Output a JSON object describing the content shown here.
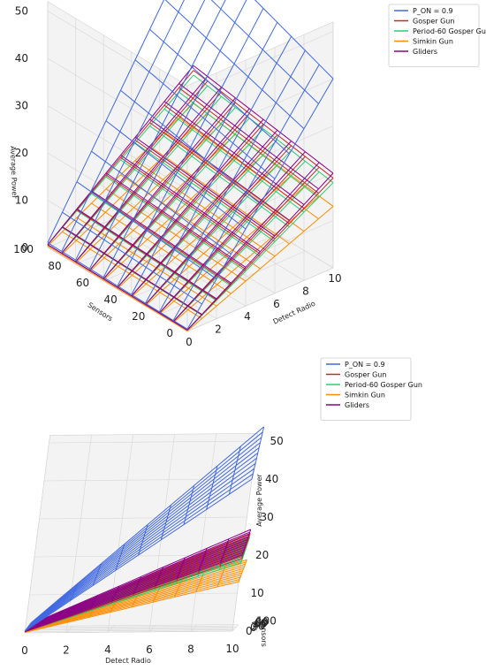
{
  "chart_data": [
    {
      "type": "surface-wireframe-3d",
      "view": "elevated",
      "xlabel": "Detect Radio",
      "ylabel": "Sensors",
      "zlabel": "Average Power",
      "xticks": [
        "0",
        "2",
        "4",
        "6",
        "8",
        "10"
      ],
      "yticks": [
        "0",
        "20",
        "40",
        "60",
        "80",
        "100"
      ],
      "zticks": [
        "0",
        "10",
        "20",
        "30",
        "40",
        "50"
      ],
      "xlim": [
        0,
        10
      ],
      "ylim": [
        0,
        100
      ],
      "zlim": [
        0,
        52
      ],
      "legend_position": "top-right",
      "series": [
        {
          "name": "P_ON = 0.9",
          "color": "#4169e1",
          "z_corners": {
            "x0_y0": 0.5,
            "x10_y0": 40,
            "x0_y100": 1,
            "x10_y100": 52
          }
        },
        {
          "name": "Gosper Gun",
          "color": "#c62828",
          "z_corners": {
            "x0_y0": 0.3,
            "x10_y0": 19,
            "x0_y100": 0.6,
            "x10_y100": 24
          }
        },
        {
          "name": "Period-60 Gosper Gun",
          "color": "#2ecc71",
          "z_corners": {
            "x0_y0": 0.3,
            "x10_y0": 18,
            "x0_y100": 0.6,
            "x10_y100": 23
          }
        },
        {
          "name": "Simkin Gun",
          "color": "#ff8c00",
          "z_corners": {
            "x0_y0": 0.1,
            "x10_y0": 13,
            "x0_y100": 0.3,
            "x10_y100": 17
          }
        },
        {
          "name": "Gliders",
          "color": "#8b008b",
          "z_corners": {
            "x0_y0": 0.3,
            "x10_y0": 20,
            "x0_y100": 0.6,
            "x10_y100": 25
          }
        }
      ]
    },
    {
      "type": "surface-wireframe-3d",
      "view": "front",
      "xlabel": "Detect Radio",
      "ylabel": "Sensors",
      "zlabel": "Average Power",
      "xticks": [
        "0",
        "2",
        "4",
        "6",
        "8",
        "10"
      ],
      "yticks": [
        "0",
        "20",
        "40",
        "60",
        "80",
        "100"
      ],
      "zticks": [
        "0",
        "10",
        "20",
        "30",
        "40",
        "50"
      ],
      "xlim": [
        0,
        10
      ],
      "ylim": [
        0,
        100
      ],
      "zlim": [
        0,
        52
      ],
      "legend_position": "top-right",
      "series": [
        {
          "name": "P_ON = 0.9",
          "color": "#4169e1"
        },
        {
          "name": "Gosper Gun",
          "color": "#c62828"
        },
        {
          "name": "Period-60 Gosper Gun",
          "color": "#2ecc71"
        },
        {
          "name": "Simkin Gun",
          "color": "#ff8c00"
        },
        {
          "name": "Gliders",
          "color": "#8b008b"
        }
      ]
    }
  ]
}
